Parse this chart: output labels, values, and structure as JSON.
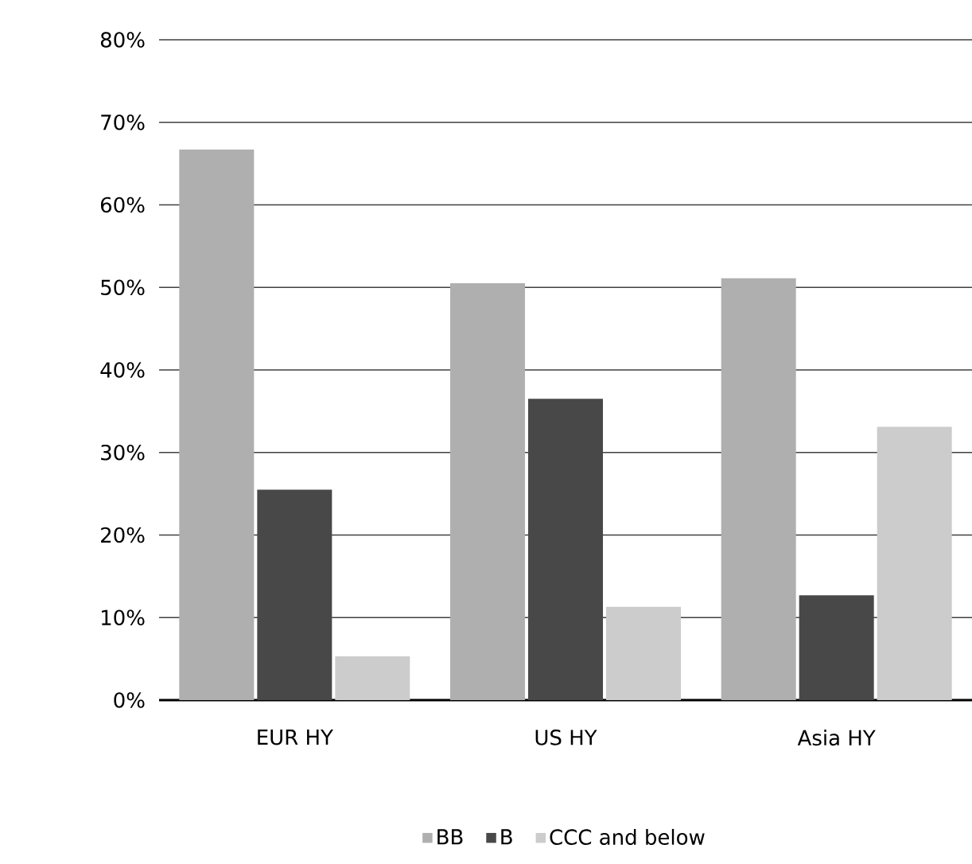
{
  "chart_data": {
    "type": "bar",
    "categories": [
      "EUR HY",
      "US HY",
      "Asia HY"
    ],
    "series": [
      {
        "name": "BB",
        "color": "#afafaf",
        "values": [
          66.7,
          50.5,
          51.1
        ]
      },
      {
        "name": "B",
        "color": "#484848",
        "values": [
          25.5,
          36.5,
          12.7
        ]
      },
      {
        "name": "CCC and below",
        "color": "#cccccc",
        "values": [
          5.3,
          11.3,
          33.1
        ]
      }
    ],
    "ylim": [
      0,
      80
    ],
    "yticks": [
      {
        "value": 0,
        "label": "0%"
      },
      {
        "value": 10,
        "label": "10%"
      },
      {
        "value": 20,
        "label": "20%"
      },
      {
        "value": 30,
        "label": "30%"
      },
      {
        "value": 40,
        "label": "40%"
      },
      {
        "value": 50,
        "label": "50%"
      },
      {
        "value": 60,
        "label": "60%"
      },
      {
        "value": 70,
        "label": "70%"
      },
      {
        "value": 80,
        "label": "80%"
      }
    ],
    "grid": "y",
    "legend": "bottom"
  }
}
